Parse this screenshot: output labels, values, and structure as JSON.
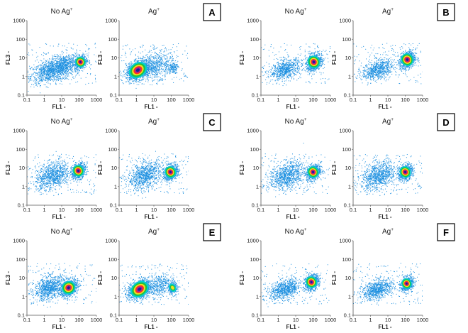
{
  "chart_data": {
    "type": "scatter",
    "description_source": "flow cytometry density scatter plots",
    "x_scale": "log",
    "y_scale": "log",
    "xlim": [
      0.1,
      1000
    ],
    "ylim": [
      0.1,
      1000
    ],
    "x_ticks": [
      "0.1",
      "1",
      "10",
      "100",
      "1000"
    ],
    "y_ticks": [
      "0.1",
      "1",
      "10",
      "100",
      "1000"
    ],
    "xlabel": "FL1",
    "ylabel": "FL3",
    "grid": false,
    "point_color": "#1e90e0",
    "density_colors": [
      "#1e90e0",
      "#00d0d0",
      "#20c040",
      "#f0e020",
      "#ff3020",
      "#a020a0",
      "#202090"
    ],
    "panels": [
      {
        "letter": "A",
        "plots": [
          {
            "title": "No Ag",
            "title_sup": "+",
            "populations": [
              {
                "x": 2,
                "y": 2,
                "sx": 0.55,
                "sy": 0.3,
                "n": 900,
                "level": 0
              },
              {
                "x": 15,
                "y": 4,
                "sx": 0.4,
                "sy": 0.3,
                "n": 600,
                "level": 0
              },
              {
                "x": 120,
                "y": 6,
                "sx": 0.18,
                "sy": 0.18,
                "n": 500,
                "level": 3
              }
            ]
          },
          {
            "title": "Ag",
            "title_sup": "+",
            "populations": [
              {
                "x": 1.2,
                "y": 2.2,
                "sx": 0.35,
                "sy": 0.25,
                "n": 1200,
                "level": 3
              },
              {
                "x": 12,
                "y": 4,
                "sx": 0.5,
                "sy": 0.35,
                "n": 600,
                "level": 0
              },
              {
                "x": 120,
                "y": 3,
                "sx": 0.15,
                "sy": 0.15,
                "n": 150,
                "level": 0
              }
            ]
          }
        ]
      },
      {
        "letter": "B",
        "plots": [
          {
            "title": "No Ag",
            "title_sup": "+",
            "populations": [
              {
                "x": 2.5,
                "y": 2.5,
                "sx": 0.45,
                "sy": 0.25,
                "n": 700,
                "level": 0
              },
              {
                "x": 110,
                "y": 6,
                "sx": 0.22,
                "sy": 0.22,
                "n": 900,
                "level": 3
              }
            ]
          },
          {
            "title": "Ag",
            "title_sup": "+",
            "populations": [
              {
                "x": 2.5,
                "y": 2.5,
                "sx": 0.45,
                "sy": 0.25,
                "n": 700,
                "level": 0
              },
              {
                "x": 130,
                "y": 8,
                "sx": 0.22,
                "sy": 0.22,
                "n": 900,
                "level": 3
              }
            ]
          }
        ]
      },
      {
        "letter": "C",
        "plots": [
          {
            "title": "No Ag",
            "title_sup": "+",
            "populations": [
              {
                "x": 3,
                "y": 4,
                "sx": 0.5,
                "sy": 0.35,
                "n": 900,
                "level": 0
              },
              {
                "x": 90,
                "y": 7,
                "sx": 0.2,
                "sy": 0.2,
                "n": 800,
                "level": 3
              }
            ]
          },
          {
            "title": "Ag",
            "title_sup": "+",
            "populations": [
              {
                "x": 3,
                "y": 4,
                "sx": 0.5,
                "sy": 0.35,
                "n": 900,
                "level": 0
              },
              {
                "x": 90,
                "y": 6,
                "sx": 0.2,
                "sy": 0.2,
                "n": 800,
                "level": 3
              }
            ]
          }
        ]
      },
      {
        "letter": "D",
        "plots": [
          {
            "title": "No Ag",
            "title_sup": "+",
            "populations": [
              {
                "x": 3,
                "y": 4,
                "sx": 0.5,
                "sy": 0.35,
                "n": 900,
                "level": 0
              },
              {
                "x": 100,
                "y": 6,
                "sx": 0.2,
                "sy": 0.2,
                "n": 800,
                "level": 3
              }
            ]
          },
          {
            "title": "Ag",
            "title_sup": "+",
            "populations": [
              {
                "x": 3,
                "y": 4,
                "sx": 0.5,
                "sy": 0.35,
                "n": 900,
                "level": 0
              },
              {
                "x": 100,
                "y": 6,
                "sx": 0.2,
                "sy": 0.2,
                "n": 800,
                "level": 3
              }
            ]
          }
        ]
      },
      {
        "letter": "E",
        "plots": [
          {
            "title": "No Ag",
            "title_sup": "+",
            "populations": [
              {
                "x": 2,
                "y": 3,
                "sx": 0.45,
                "sy": 0.3,
                "n": 900,
                "level": 0
              },
              {
                "x": 25,
                "y": 3,
                "sx": 0.25,
                "sy": 0.22,
                "n": 900,
                "level": 3
              }
            ]
          },
          {
            "title": "Ag",
            "title_sup": "+",
            "populations": [
              {
                "x": 1.5,
                "y": 2.5,
                "sx": 0.35,
                "sy": 0.25,
                "n": 1100,
                "level": 3
              },
              {
                "x": 20,
                "y": 4,
                "sx": 0.4,
                "sy": 0.3,
                "n": 400,
                "level": 0
              },
              {
                "x": 120,
                "y": 3,
                "sx": 0.12,
                "sy": 0.15,
                "n": 300,
                "level": 1
              }
            ]
          }
        ]
      },
      {
        "letter": "F",
        "plots": [
          {
            "title": "No Ag",
            "title_sup": "+",
            "populations": [
              {
                "x": 2.5,
                "y": 2.5,
                "sx": 0.45,
                "sy": 0.25,
                "n": 800,
                "level": 0
              },
              {
                "x": 80,
                "y": 6,
                "sx": 0.2,
                "sy": 0.2,
                "n": 800,
                "level": 3
              }
            ]
          },
          {
            "title": "Ag",
            "title_sup": "+",
            "populations": [
              {
                "x": 2.5,
                "y": 2.5,
                "sx": 0.45,
                "sy": 0.25,
                "n": 800,
                "level": 0
              },
              {
                "x": 120,
                "y": 5,
                "sx": 0.18,
                "sy": 0.18,
                "n": 700,
                "level": 3
              }
            ]
          }
        ]
      }
    ]
  }
}
